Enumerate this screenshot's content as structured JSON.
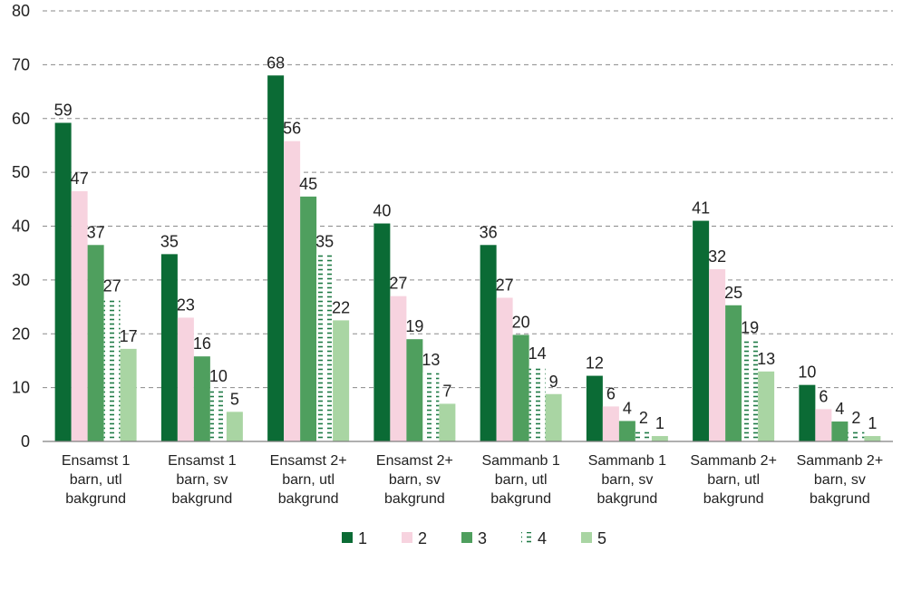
{
  "chart_data": {
    "type": "bar",
    "title": "",
    "xlabel": "",
    "ylabel": "",
    "ylim": [
      0,
      80
    ],
    "yticks": [
      0,
      10,
      20,
      30,
      40,
      50,
      60,
      70,
      80
    ],
    "grid": true,
    "legend_position": "bottom",
    "categories": [
      [
        "Ensamst 1",
        "barn, utl",
        "bakgrund"
      ],
      [
        "Ensamst 1",
        "barn, sv",
        "bakgrund"
      ],
      [
        "Ensamst 2+",
        "barn, utl",
        "bakgrund"
      ],
      [
        "Ensamst 2+",
        "barn, sv",
        "bakgrund"
      ],
      [
        "Sammanb 1",
        "barn, utl",
        "bakgrund"
      ],
      [
        "Sammanb 1",
        "barn, sv",
        "bakgrund"
      ],
      [
        "Sammanb 2+",
        "barn, utl",
        "bakgrund"
      ],
      [
        "Sammanb 2+",
        "barn, sv",
        "bakgrund"
      ]
    ],
    "series": [
      {
        "name": "1",
        "color": "#0b6b35",
        "pattern": "solid",
        "values": [
          59.2,
          34.8,
          68.0,
          40.5,
          36.5,
          12.2,
          41.0,
          10.5
        ],
        "labels": [
          "59",
          "35",
          "68",
          "40",
          "36",
          "12",
          "41",
          "10"
        ]
      },
      {
        "name": "2",
        "color": "#f7d3df",
        "pattern": "solid",
        "values": [
          46.5,
          23.0,
          55.8,
          27.0,
          26.7,
          6.5,
          32.0,
          6.0
        ],
        "labels": [
          "47",
          "23",
          "56",
          "27",
          "27",
          "6",
          "32",
          "6"
        ]
      },
      {
        "name": "3",
        "color": "#4f9f5e",
        "pattern": "solid",
        "values": [
          36.5,
          15.8,
          45.5,
          19.0,
          19.8,
          3.8,
          25.3,
          3.7
        ],
        "labels": [
          "37",
          "16",
          "45",
          "19",
          "20",
          "4",
          "25",
          "4"
        ]
      },
      {
        "name": "4",
        "color": "#1f7a45",
        "pattern": "dashed",
        "values": [
          26.5,
          9.8,
          34.8,
          12.8,
          14.0,
          2.0,
          18.8,
          2.0
        ],
        "labels": [
          "27",
          "10",
          "35",
          "13",
          "14",
          "2",
          "19",
          "2"
        ]
      },
      {
        "name": "5",
        "color": "#a9d5a3",
        "pattern": "solid",
        "values": [
          17.2,
          5.5,
          22.5,
          7.0,
          8.8,
          1.0,
          13.0,
          1.0
        ],
        "labels": [
          "17",
          "5",
          "22",
          "7",
          "9",
          "1",
          "13",
          "1"
        ]
      }
    ]
  }
}
